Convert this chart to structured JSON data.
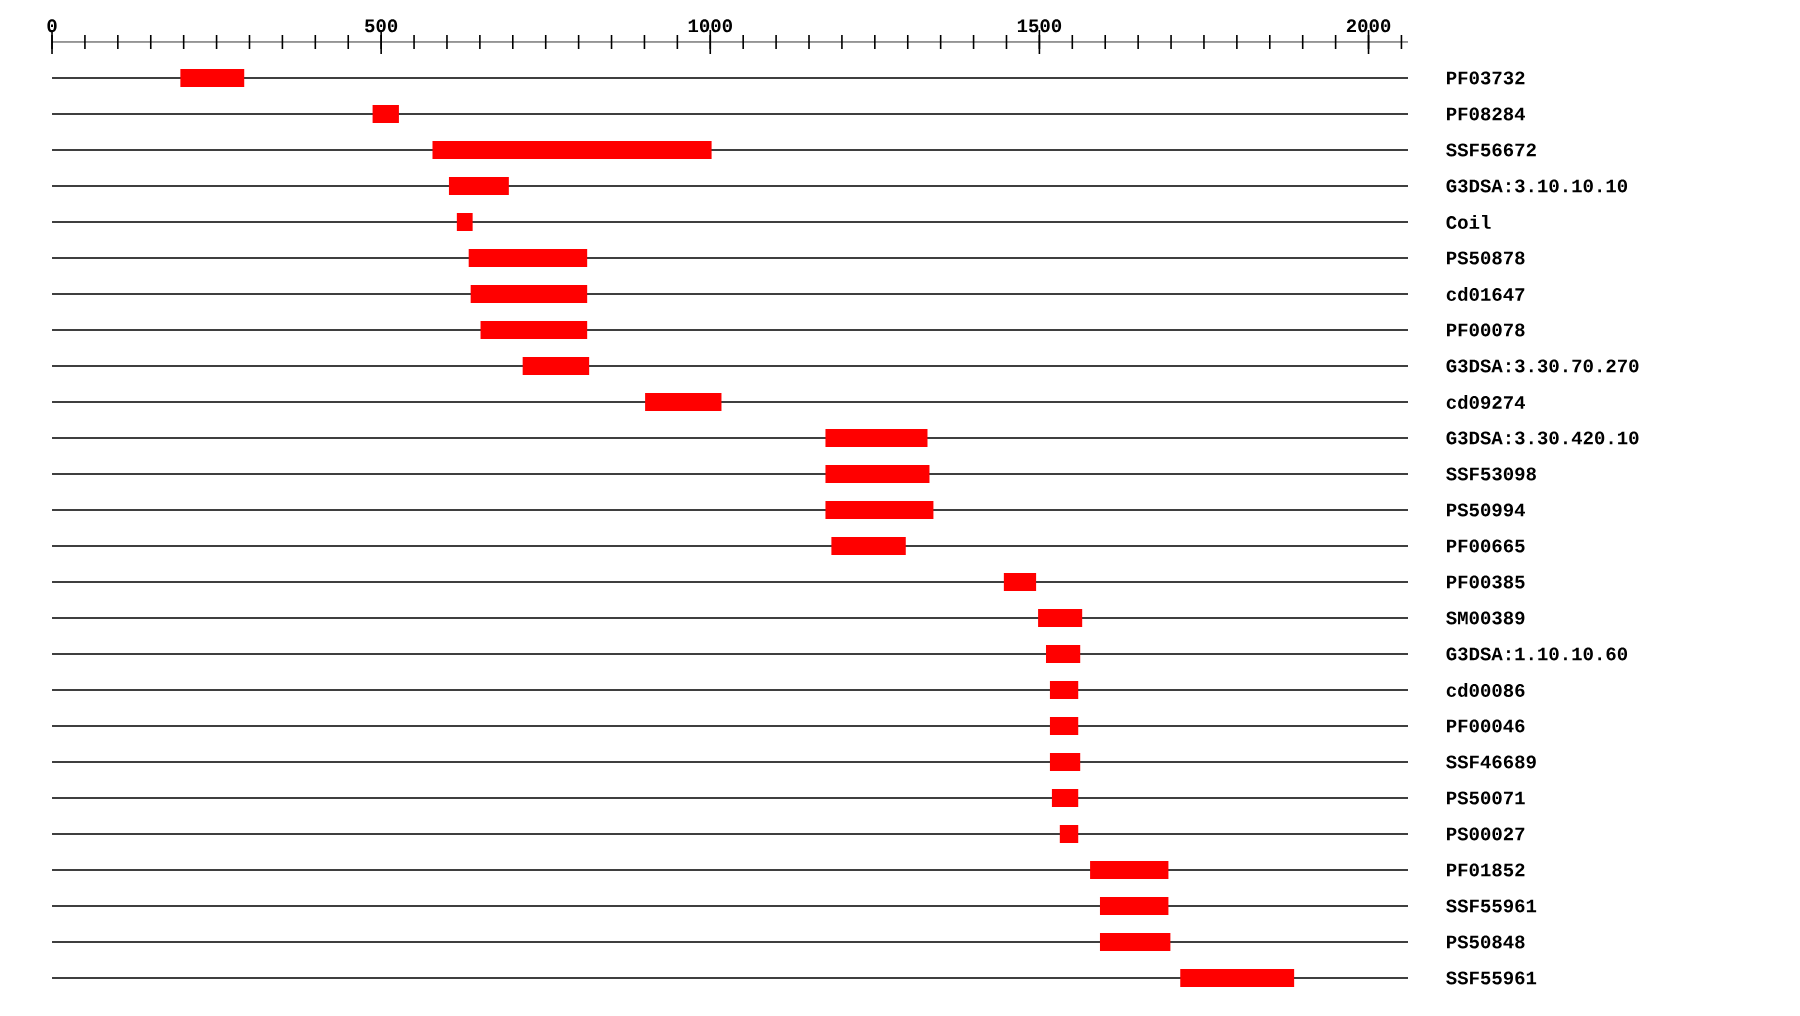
{
  "chart_data": {
    "type": "bar",
    "orientation": "horizontal",
    "categories": [
      "PF03732",
      "PF08284",
      "SSF56672",
      "G3DSA:3.10.10.10",
      "Coil",
      "PS50878",
      "cd01647",
      "PF00078",
      "G3DSA:3.30.70.270",
      "cd09274",
      "G3DSA:3.30.420.10",
      "SSF53098",
      "PS50994",
      "PF00665",
      "PF00385",
      "SM00389",
      "G3DSA:1.10.10.60",
      "cd00086",
      "PF00046",
      "SSF46689",
      "PS50071",
      "PS00027",
      "PF01852",
      "SSF55961",
      "PS50848",
      "SSF55961"
    ],
    "base": [
      195,
      487,
      578,
      603,
      615,
      633,
      636,
      651,
      715,
      901,
      1175,
      1175,
      1175,
      1184,
      1446,
      1498,
      1510,
      1516,
      1516,
      1516,
      1519,
      1531,
      1577,
      1592,
      1592,
      1714
    ],
    "values": [
      97,
      40,
      424,
      91,
      24,
      180,
      177,
      162,
      101,
      116,
      155,
      158,
      164,
      113,
      49,
      67,
      52,
      43,
      43,
      46,
      40,
      28,
      119,
      104,
      107,
      173
    ],
    "color": "#ff0000",
    "xlim": [
      0,
      2060
    ],
    "xticks": [
      0,
      {
        "value": 50,
        "label": null
      },
      {
        "value": 100,
        "label": null
      },
      {
        "value": 150,
        "label": null
      },
      {
        "value": 200,
        "label": null
      },
      {
        "value": 250,
        "label": null
      },
      {
        "value": 300,
        "label": null
      },
      {
        "value": 350,
        "label": null
      },
      {
        "value": 400,
        "label": null
      },
      {
        "value": 450,
        "label": null
      },
      500,
      {
        "value": 550,
        "label": null
      },
      {
        "value": 600,
        "label": null
      },
      {
        "value": 650,
        "label": null
      },
      {
        "value": 700,
        "label": null
      },
      {
        "value": 750,
        "label": null
      },
      {
        "value": 800,
        "label": null
      },
      {
        "value": 850,
        "label": null
      },
      {
        "value": 900,
        "label": null
      },
      {
        "value": 950,
        "label": null
      },
      1000,
      {
        "value": 1050,
        "label": null
      },
      {
        "value": 1100,
        "label": null
      },
      {
        "value": 1150,
        "label": null
      },
      {
        "value": 1200,
        "label": null
      },
      {
        "value": 1250,
        "label": null
      },
      {
        "value": 1300,
        "label": null
      },
      {
        "value": 1350,
        "label": null
      },
      {
        "value": 1400,
        "label": null
      },
      {
        "value": 1450,
        "label": null
      },
      1500,
      {
        "value": 1550,
        "label": null
      },
      {
        "value": 1600,
        "label": null
      },
      {
        "value": 1650,
        "label": null
      },
      {
        "value": 1700,
        "label": null
      },
      {
        "value": 1750,
        "label": null
      },
      {
        "value": 1800,
        "label": null
      },
      {
        "value": 1850,
        "label": null
      },
      {
        "value": 1900,
        "label": null
      },
      {
        "value": 1950,
        "label": null
      },
      2000,
      {
        "value": 2050,
        "label": null
      }
    ],
    "grid": "y"
  }
}
